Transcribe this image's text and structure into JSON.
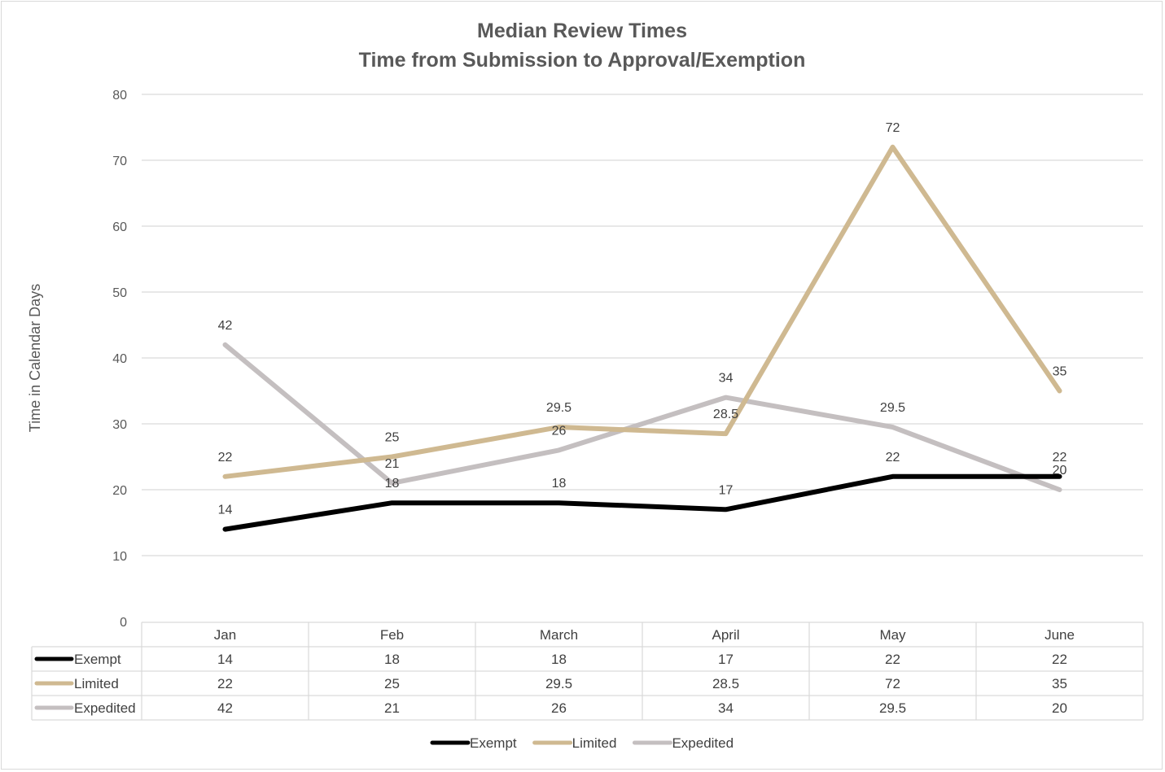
{
  "chart_data": {
    "type": "line",
    "title": "Median Review Times",
    "subtitle": "Time from Submission to Approval/Exemption",
    "ylabel": "Time in Calendar Days",
    "xlabel": "",
    "ylim": [
      0,
      80
    ],
    "yticks": [
      0,
      10,
      20,
      30,
      40,
      50,
      60,
      70,
      80
    ],
    "categories": [
      "Jan",
      "Feb",
      "March",
      "April",
      "May",
      "June"
    ],
    "grid": true,
    "legend_position": "bottom",
    "data_table": true,
    "series": [
      {
        "name": "Exempt",
        "values": [
          14,
          18,
          18,
          17,
          22,
          22
        ],
        "color": "#000000"
      },
      {
        "name": "Limited",
        "values": [
          22,
          25,
          29.5,
          28.5,
          72,
          35
        ],
        "color": "#cfb991"
      },
      {
        "name": "Expedited",
        "values": [
          42,
          21,
          26,
          34,
          29.5,
          20
        ],
        "color": "#c4bfc0"
      }
    ]
  }
}
